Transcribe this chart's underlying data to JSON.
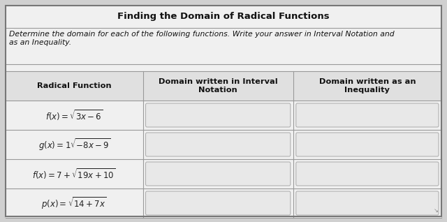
{
  "title": "Finding the Domain of Radical Functions",
  "subtitle": "Determine the domain for each of the following functions. Write your answer in Interval Notation and\nas an Inequality.",
  "col_headers": [
    "Radical Function",
    "Domain written in Interval\nNotation",
    "Domain written as an\nInequality"
  ],
  "rows": [
    "f(x) = \\sqrt{3x-6}",
    "g(x) = 1\\sqrt{-8x-9}",
    "f(x) = 7 + \\sqrt{19x+10}",
    "p(x) = \\sqrt{14+7x}"
  ],
  "outer_bg": "#d0d0d0",
  "table_bg": "#f0f0f0",
  "cell_bg": "#ffffff",
  "input_box_bg": "#e8e8e8",
  "border_color": "#999999",
  "title_fontsize": 9.5,
  "subtitle_fontsize": 7.8,
  "header_fontsize": 8.2,
  "row_fontsize": 8.5,
  "figsize": [
    6.4,
    3.18
  ],
  "dpi": 100
}
